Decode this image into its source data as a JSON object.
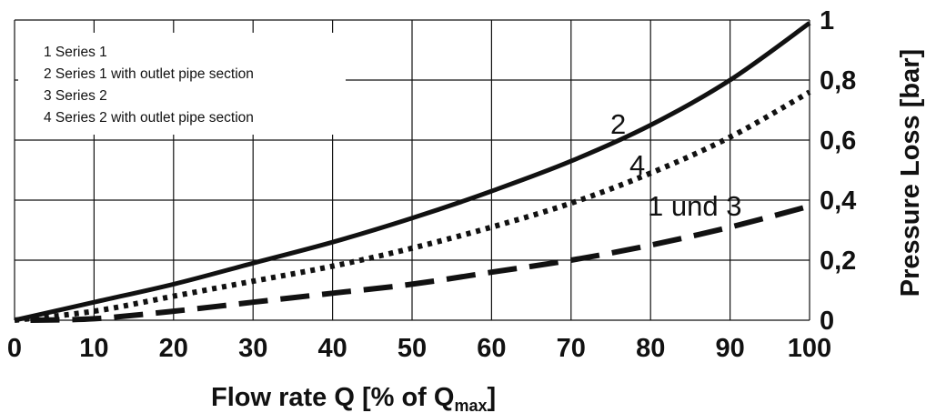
{
  "chart_data": {
    "type": "line",
    "xlabel": "Flow rate Q [% of Q",
    "xlabel_sub": "max",
    "xlabel_end": "]",
    "ylabel": "Pressure Loss [bar]",
    "xlim": [
      0,
      100
    ],
    "ylim": [
      0,
      1
    ],
    "x_ticks": [
      "0",
      "10",
      "20",
      "30",
      "40",
      "50",
      "60",
      "70",
      "80",
      "90",
      "100"
    ],
    "y_ticks": [
      "0",
      "0,2",
      "0,4",
      "0,6",
      "0,8",
      "1"
    ],
    "grid": true,
    "y_axis_side": "right",
    "legend_position": "top-left",
    "legend": [
      "1 Series 1",
      "2 Series 1 with outlet pipe section",
      "3 Series 2",
      "4 Series 2 with outlet pipe section"
    ],
    "series": [
      {
        "name": "2",
        "style": "solid",
        "x": [
          0,
          10,
          20,
          30,
          40,
          50,
          60,
          70,
          80,
          90,
          100
        ],
        "values": [
          0.0,
          0.06,
          0.12,
          0.19,
          0.26,
          0.34,
          0.43,
          0.53,
          0.65,
          0.8,
          0.99
        ]
      },
      {
        "name": "4",
        "style": "dotted",
        "x": [
          0,
          10,
          20,
          30,
          40,
          50,
          60,
          70,
          80,
          90,
          100
        ],
        "values": [
          0.0,
          0.03,
          0.08,
          0.13,
          0.18,
          0.24,
          0.31,
          0.39,
          0.49,
          0.61,
          0.76
        ]
      },
      {
        "name": "1 und 3",
        "style": "dashed",
        "x": [
          2,
          10,
          20,
          30,
          40,
          50,
          60,
          70,
          80,
          90,
          100
        ],
        "values": [
          0.0,
          0.005,
          0.03,
          0.06,
          0.09,
          0.12,
          0.16,
          0.2,
          0.25,
          0.31,
          0.38
        ]
      }
    ]
  }
}
